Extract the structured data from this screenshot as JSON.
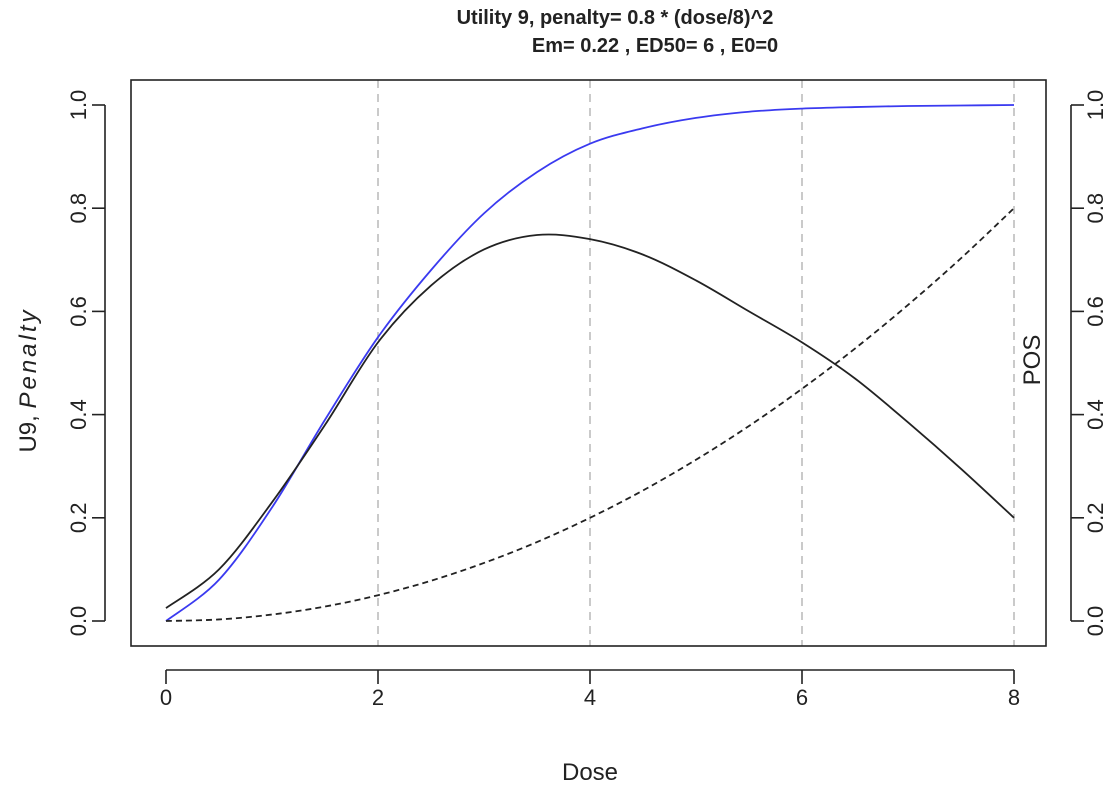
{
  "chart_data": {
    "type": "line",
    "title_line1": "Utility 9, penalty=  0.8 * (dose/8)^2",
    "title_line2": "Em= 0.22 , ED50= 6 , E0=0",
    "xlabel": "Dose",
    "ylabel_left_prefix": "U9, ",
    "ylabel_left_italic": "Penalty",
    "ylabel_right": "POS",
    "xlim": [
      0,
      8
    ],
    "ylim": [
      0,
      1
    ],
    "xticks": [
      0,
      2,
      4,
      6,
      8
    ],
    "xtick_labels": [
      "0",
      "2",
      "4",
      "6",
      "8"
    ],
    "yticks": [
      0,
      0.2,
      0.4,
      0.6,
      0.8,
      1
    ],
    "ytick_labels_left": [
      "0.0",
      "0.2",
      "0.4",
      "0.6",
      "0.8",
      "1.0"
    ],
    "ytick_labels_right": [
      "0.0",
      "0.2",
      "0.4",
      "0.6",
      "0.8",
      "1.0"
    ],
    "vertical_grid": [
      2,
      4,
      6,
      8
    ],
    "colors": {
      "pos": "#3a3af0",
      "utility": "#222222",
      "penalty": "#222222",
      "grid": "#bdbdbd",
      "axis": "#222222"
    },
    "series": [
      {
        "id": "pos",
        "style": "solid",
        "x": [
          0,
          0.5,
          1,
          1.5,
          2,
          2.5,
          3,
          3.5,
          4,
          4.5,
          5,
          5.5,
          6,
          6.5,
          7,
          7.5,
          8
        ],
        "y": [
          0.0,
          0.08,
          0.22,
          0.39,
          0.55,
          0.68,
          0.79,
          0.87,
          0.925,
          0.955,
          0.975,
          0.987,
          0.993,
          0.996,
          0.998,
          0.999,
          1.0
        ]
      },
      {
        "id": "utility",
        "style": "solid",
        "x": [
          0,
          0.5,
          1,
          1.5,
          2,
          2.5,
          3,
          3.5,
          4,
          4.5,
          5,
          5.5,
          6,
          6.5,
          7,
          7.5,
          8
        ],
        "y": [
          0.025,
          0.1,
          0.23,
          0.38,
          0.54,
          0.65,
          0.72,
          0.748,
          0.74,
          0.71,
          0.66,
          0.6,
          0.54,
          0.47,
          0.385,
          0.295,
          0.2
        ]
      },
      {
        "id": "penalty",
        "style": "dashed",
        "x": [
          0,
          0.5,
          1,
          1.5,
          2,
          2.5,
          3,
          3.5,
          4,
          4.5,
          5,
          5.5,
          6,
          6.5,
          7,
          7.5,
          8
        ],
        "y": [
          0.0,
          0.003,
          0.0125,
          0.028,
          0.05,
          0.078,
          0.1125,
          0.153,
          0.2,
          0.253,
          0.3125,
          0.378,
          0.45,
          0.528,
          0.6125,
          0.703,
          0.8
        ]
      }
    ]
  }
}
